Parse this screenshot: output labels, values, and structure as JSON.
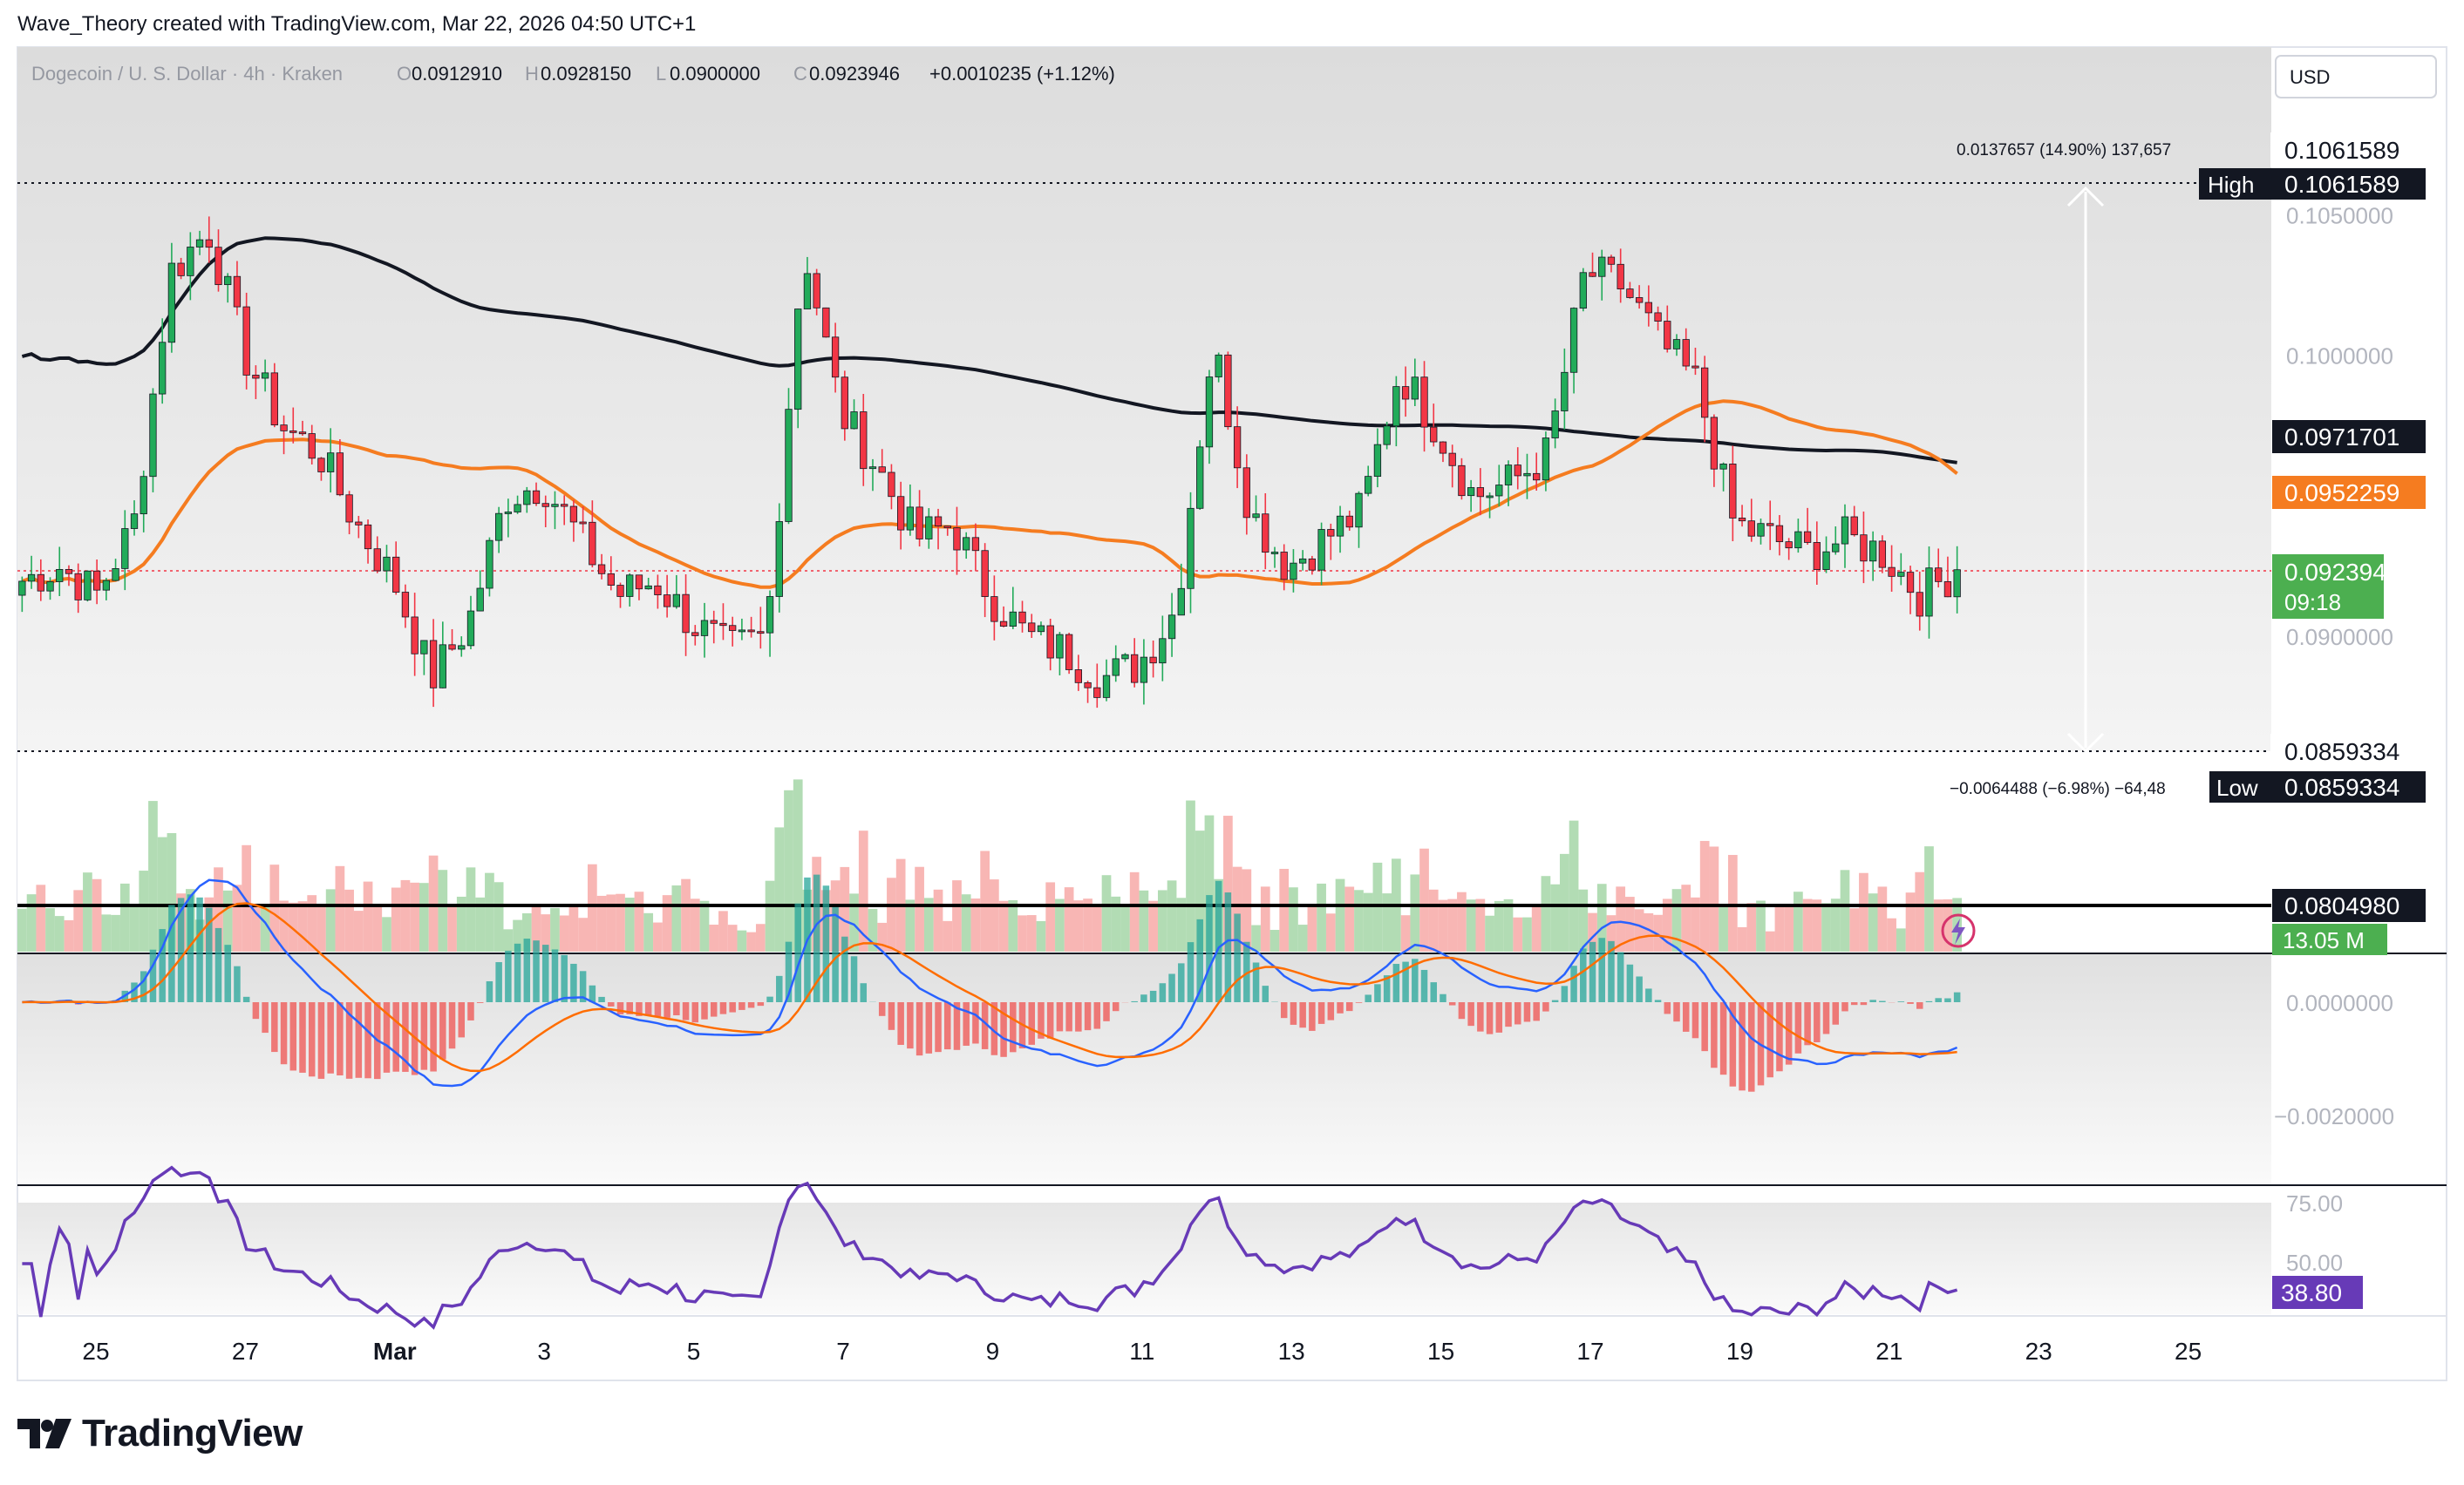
{
  "header": {
    "credit": "Wave_Theory created with TradingView.com, Mar 22, 2026 04:50 UTC+1",
    "symbol": "Dogecoin / U. S. Dollar · 4h · Kraken",
    "o_label": "O",
    "o": "0.0912910",
    "h_label": "H",
    "h": "0.0928150",
    "l_label": "L",
    "l": "0.0900000",
    "c_label": "C",
    "c": "0.0923946",
    "change": "+0.0010235 (+1.12%)",
    "currency": "USD"
  },
  "brand": {
    "name": "TradingView"
  },
  "measure": {
    "up_text": "0.0137657 (14.90%) 137,657",
    "down_text": "−0.0064488 (−6.98%) −64,48"
  },
  "price_labels": {
    "high_tag": "High",
    "low_tag": "Low",
    "high_value": "0.1061589",
    "high_value_2": "0.1061589",
    "ma200": "0.0971701",
    "ma50": "0.0952259",
    "last": "0.0923946",
    "countdown": "09:18",
    "low_value": "0.0859334",
    "low_value_2": "0.0859334",
    "hline": "0.0804980",
    "volume": "13.05 M",
    "macd_zero": "0.0000000",
    "macd_low": "−0.0020000",
    "rsi_75": "75.00",
    "rsi_50": "50.00",
    "rsi_last": "38.80"
  },
  "colors": {
    "up": "#26a69a",
    "candle_up": "#22ab5a",
    "candle_down": "#f23645",
    "ma50": "#f57c20",
    "ma200": "#131722",
    "rsi": "#673ab7",
    "macd": "#2962ff",
    "signal": "#ff6d00"
  },
  "chart_data": [
    {
      "type": "candlestick",
      "title": "Dogecoin / U. S. Dollar · 4h · Kraken",
      "yaxis": {
        "ticks": [
          0.09,
          0.095,
          0.1,
          0.105
        ],
        "range": [
          0.0855,
          0.1085
        ]
      },
      "xaxis": {
        "ticks": [
          "25",
          "27",
          "Mar",
          "3",
          "5",
          "7",
          "9",
          "11",
          "13",
          "15",
          "17",
          "19",
          "21",
          "23",
          "25"
        ]
      },
      "overlays": [
        "MA 50",
        "MA 200",
        "Volume"
      ],
      "high": 0.1061589,
      "low": 0.0859334,
      "last": 0.0923946,
      "close_path": [
        0.092,
        0.0925,
        0.0915,
        0.094,
        0.103,
        0.1045,
        0.1,
        0.0975,
        0.0965,
        0.094,
        0.092,
        0.0885,
        0.0905,
        0.095,
        0.0955,
        0.0935,
        0.0915,
        0.092,
        0.0905,
        0.0895,
        0.09,
        0.104,
        0.098,
        0.096,
        0.0935,
        0.094,
        0.0915,
        0.09,
        0.0895,
        0.0885,
        0.089,
        0.091,
        0.1005,
        0.0945,
        0.0925,
        0.0935,
        0.0945,
        0.0995,
        0.0975,
        0.095,
        0.0955,
        0.0965,
        0.103,
        0.1025,
        0.1005,
        0.099,
        0.094,
        0.0935,
        0.093,
        0.0935,
        0.093,
        0.0915,
        0.0924
      ]
    },
    {
      "type": "line",
      "title": "MACD",
      "yaxis": {
        "ticks": [
          0.0,
          -0.002
        ]
      }
    },
    {
      "type": "line",
      "title": "RSI",
      "yaxis": {
        "ticks": [
          50,
          75
        ]
      },
      "last": 38.8
    }
  ]
}
